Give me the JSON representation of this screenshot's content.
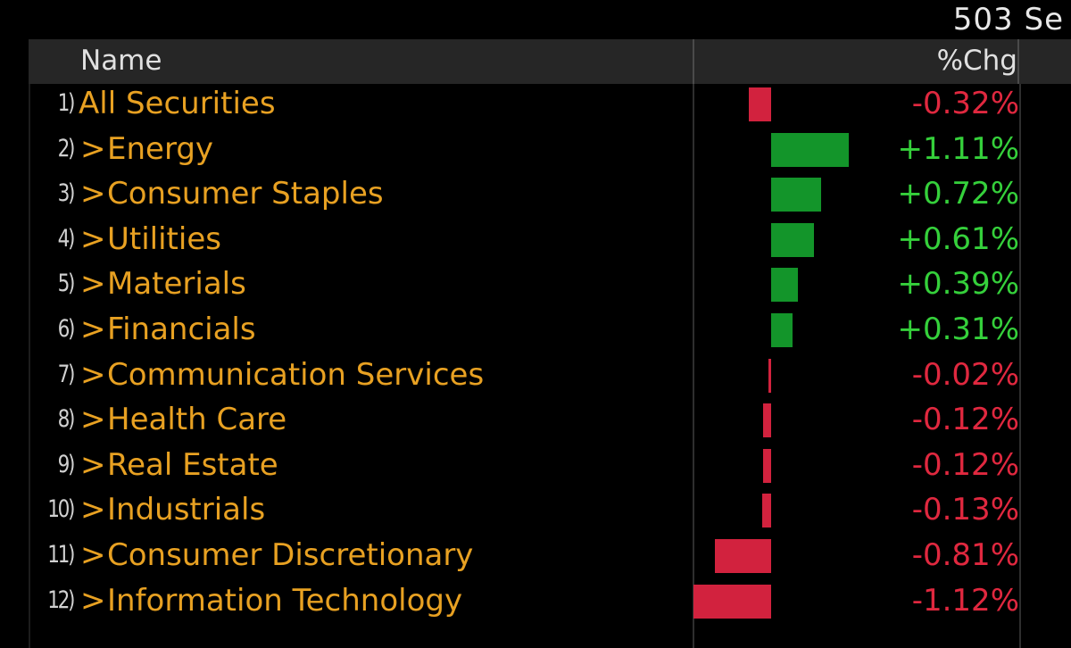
{
  "topbar": {
    "count_text": "503 Se"
  },
  "header": {
    "name": "Name",
    "chg": "%Chg"
  },
  "colors": {
    "positive": "#13952a",
    "negative": "#d2223e",
    "label": "#e8a122"
  },
  "rows": [
    {
      "num": "1)",
      "label": "All Securities",
      "chevron": "",
      "chg": -0.32,
      "chg_text": "-0.32%"
    },
    {
      "num": "2)",
      "label": "Energy",
      "chevron": ">",
      "chg": 1.11,
      "chg_text": "+1.11%"
    },
    {
      "num": "3)",
      "label": "Consumer Staples",
      "chevron": ">",
      "chg": 0.72,
      "chg_text": "+0.72%"
    },
    {
      "num": "4)",
      "label": "Utilities",
      "chevron": ">",
      "chg": 0.61,
      "chg_text": "+0.61%"
    },
    {
      "num": "5)",
      "label": "Materials",
      "chevron": ">",
      "chg": 0.39,
      "chg_text": "+0.39%"
    },
    {
      "num": "6)",
      "label": "Financials",
      "chevron": ">",
      "chg": 0.31,
      "chg_text": "+0.31%"
    },
    {
      "num": "7)",
      "label": "Communication Services",
      "chevron": ">",
      "chg": -0.02,
      "chg_text": "-0.02%"
    },
    {
      "num": "8)",
      "label": "Health Care",
      "chevron": ">",
      "chg": -0.12,
      "chg_text": "-0.12%"
    },
    {
      "num": "9)",
      "label": "Real Estate",
      "chevron": ">",
      "chg": -0.12,
      "chg_text": "-0.12%"
    },
    {
      "num": "10)",
      "label": "Industrials",
      "chevron": ">",
      "chg": -0.13,
      "chg_text": "-0.13%"
    },
    {
      "num": "11)",
      "label": "Consumer Discretionary",
      "chevron": ">",
      "chg": -0.81,
      "chg_text": "-0.81%"
    },
    {
      "num": "12)",
      "label": "Information Technology",
      "chevron": ">",
      "chg": -1.12,
      "chg_text": "-1.12%"
    }
  ]
}
